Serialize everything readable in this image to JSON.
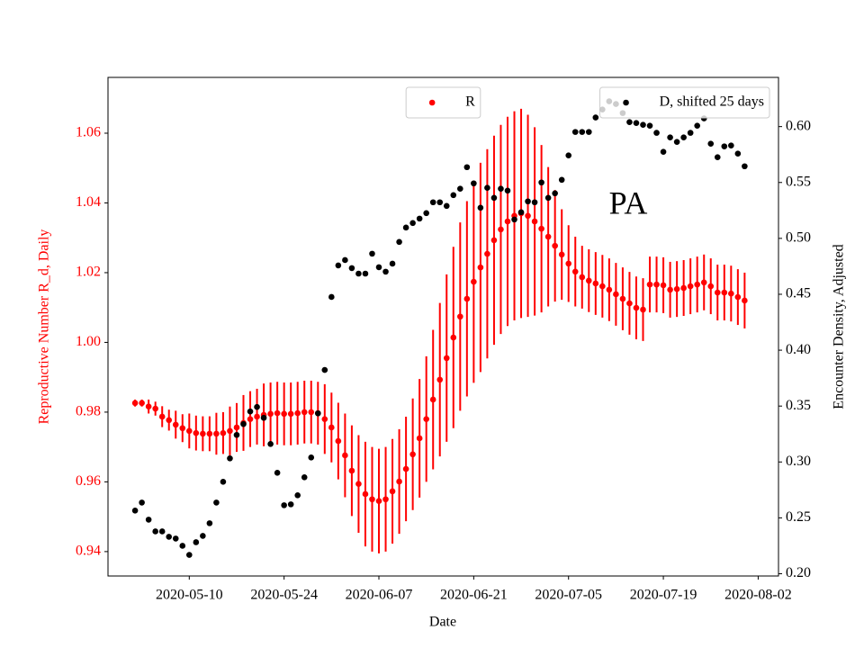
{
  "chart_data": {
    "type": "errorbar-scatter",
    "annotation": "PA",
    "xlabel": "Date",
    "ylabel": "Reproductive Number R_d, Daily",
    "y2label": "Encounter Density, Adjusted",
    "ylabel_color": "#ff0000",
    "xlim": [
      "2020-04-28",
      "2020-08-05"
    ],
    "xticks": [
      "2020-05-10",
      "2020-05-24",
      "2020-06-07",
      "2020-06-21",
      "2020-07-05",
      "2020-07-19",
      "2020-08-02"
    ],
    "ylim": [
      0.933,
      1.076
    ],
    "yticks": [
      0.94,
      0.96,
      0.98,
      {
        "value": 1,
        "label": "1.00"
      },
      1.02,
      1.04,
      1.06
    ],
    "y2lim": [
      0.198,
      0.644
    ],
    "y2ticks": [
      {
        "value": 0.2,
        "label": "0.20"
      },
      0.25,
      {
        "value": 0.3,
        "label": "0.30"
      },
      0.35,
      {
        "value": 0.4,
        "label": "0.40"
      },
      0.45,
      {
        "value": 0.5,
        "label": "0.50"
      },
      0.55,
      {
        "value": 0.6,
        "label": "0.60"
      }
    ],
    "x": [
      "2020-05-02",
      "2020-05-03",
      "2020-05-04",
      "2020-05-05",
      "2020-05-06",
      "2020-05-07",
      "2020-05-08",
      "2020-05-09",
      "2020-05-10",
      "2020-05-11",
      "2020-05-12",
      "2020-05-13",
      "2020-05-14",
      "2020-05-15",
      "2020-05-16",
      "2020-05-17",
      "2020-05-18",
      "2020-05-19",
      "2020-05-20",
      "2020-05-21",
      "2020-05-22",
      "2020-05-23",
      "2020-05-24",
      "2020-05-25",
      "2020-05-26",
      "2020-05-27",
      "2020-05-28",
      "2020-05-29",
      "2020-05-30",
      "2020-05-31",
      "2020-06-01",
      "2020-06-02",
      "2020-06-03",
      "2020-06-04",
      "2020-06-05",
      "2020-06-06",
      "2020-06-07",
      "2020-06-08",
      "2020-06-09",
      "2020-06-10",
      "2020-06-11",
      "2020-06-12",
      "2020-06-13",
      "2020-06-14",
      "2020-06-15",
      "2020-06-16",
      "2020-06-17",
      "2020-06-18",
      "2020-06-19",
      "2020-06-20",
      "2020-06-21",
      "2020-06-22",
      "2020-06-23",
      "2020-06-24",
      "2020-06-25",
      "2020-06-26",
      "2020-06-27",
      "2020-06-28",
      "2020-06-29",
      "2020-06-30",
      "2020-07-01",
      "2020-07-02",
      "2020-07-03",
      "2020-07-04",
      "2020-07-05",
      "2020-07-06",
      "2020-07-07",
      "2020-07-08",
      "2020-07-09",
      "2020-07-10",
      "2020-07-11",
      "2020-07-12",
      "2020-07-13",
      "2020-07-14",
      "2020-07-15",
      "2020-07-16",
      "2020-07-17",
      "2020-07-18",
      "2020-07-19",
      "2020-07-20",
      "2020-07-21",
      "2020-07-22",
      "2020-07-23",
      "2020-07-24",
      "2020-07-25",
      "2020-07-26",
      "2020-07-27",
      "2020-07-28",
      "2020-07-29",
      "2020-07-30",
      "2020-07-31"
    ],
    "series": [
      {
        "name": "R",
        "color": "#ff0000",
        "legend": "upper center",
        "values": [
          0.9826,
          0.9826,
          0.9816,
          0.981,
          0.9787,
          0.9777,
          0.9764,
          0.9754,
          0.9746,
          0.974,
          0.9738,
          0.9738,
          0.9738,
          0.974,
          0.9746,
          0.9756,
          0.9769,
          0.978,
          0.9787,
          0.9792,
          0.9795,
          0.9797,
          0.9795,
          0.9795,
          0.9797,
          0.98,
          0.98,
          0.9797,
          0.978,
          0.9756,
          0.9717,
          0.9676,
          0.9632,
          0.9594,
          0.9565,
          0.955,
          0.9545,
          0.955,
          0.9573,
          0.9601,
          0.9637,
          0.9679,
          0.9725,
          0.978,
          0.9836,
          0.9893,
          0.9955,
          1.0014,
          1.0074,
          1.0125,
          1.0174,
          1.0215,
          1.0254,
          1.0293,
          1.0324,
          1.0347,
          1.0363,
          1.037,
          1.0363,
          1.0347,
          1.0326,
          1.0303,
          1.0277,
          1.0252,
          1.0226,
          1.0203,
          1.0187,
          1.0177,
          1.0169,
          1.0161,
          1.0151,
          1.0138,
          1.0125,
          1.0112,
          1.0099,
          1.0094,
          1.0166,
          1.0166,
          1.0164,
          1.0151,
          1.0153,
          1.0156,
          1.0161,
          1.0166,
          1.0172,
          1.0161,
          1.0143,
          1.0143,
          1.014,
          1.013,
          1.012
        ],
        "errors": [
          0.001,
          0.001,
          0.002,
          0.002,
          0.003,
          0.003,
          0.004,
          0.004,
          0.005,
          0.005,
          0.005,
          0.005,
          0.006,
          0.006,
          0.007,
          0.007,
          0.008,
          0.008,
          0.008,
          0.009,
          0.009,
          0.009,
          0.009,
          0.009,
          0.009,
          0.009,
          0.009,
          0.009,
          0.01,
          0.01,
          0.011,
          0.012,
          0.013,
          0.014,
          0.015,
          0.015,
          0.015,
          0.015,
          0.015,
          0.015,
          0.015,
          0.016,
          0.017,
          0.018,
          0.02,
          0.022,
          0.024,
          0.026,
          0.027,
          0.028,
          0.029,
          0.03,
          0.03,
          0.03,
          0.03,
          0.03,
          0.03,
          0.03,
          0.029,
          0.027,
          0.024,
          0.02,
          0.016,
          0.013,
          0.011,
          0.01,
          0.009,
          0.009,
          0.009,
          0.009,
          0.009,
          0.009,
          0.009,
          0.009,
          0.009,
          0.009,
          0.008,
          0.008,
          0.008,
          0.008,
          0.008,
          0.008,
          0.008,
          0.008,
          0.008,
          0.008,
          0.008,
          0.008,
          0.008,
          0.008,
          0.008
        ]
      },
      {
        "name": "D, shifted 25 days",
        "color": "#000000",
        "axis": "y2",
        "legend": "upper right",
        "values": [
          0.2565,
          0.2637,
          0.2484,
          0.2379,
          0.2379,
          0.2331,
          0.2315,
          0.225,
          0.2169,
          0.2282,
          0.2339,
          0.2452,
          0.2637,
          0.2823,
          0.3032,
          0.3242,
          0.3339,
          0.3452,
          0.3492,
          0.3395,
          0.3161,
          0.2903,
          0.2613,
          0.2621,
          0.2702,
          0.2863,
          0.304,
          0.3435,
          0.3823,
          0.4476,
          0.4758,
          0.4806,
          0.4734,
          0.4685,
          0.4685,
          0.4863,
          0.4742,
          0.4702,
          0.4774,
          0.4968,
          0.5097,
          0.5137,
          0.5177,
          0.5226,
          0.5323,
          0.5323,
          0.529,
          0.5387,
          0.5444,
          0.5637,
          0.5492,
          0.5274,
          0.5452,
          0.5363,
          0.5444,
          0.5427,
          0.5169,
          0.5234,
          0.5331,
          0.5323,
          0.55,
          0.5363,
          0.5403,
          0.5524,
          0.5742,
          0.5952,
          0.5952,
          0.5952,
          0.6081,
          0.6153,
          0.6226,
          0.6202,
          0.6121,
          0.604,
          0.6032,
          0.6016,
          0.6008,
          0.5944,
          0.5774,
          0.5903,
          0.5863,
          0.5903,
          0.5944,
          0.6008,
          0.6073,
          0.5847,
          0.5726,
          0.5823,
          0.5831,
          0.5758,
          0.5645
        ]
      }
    ]
  }
}
